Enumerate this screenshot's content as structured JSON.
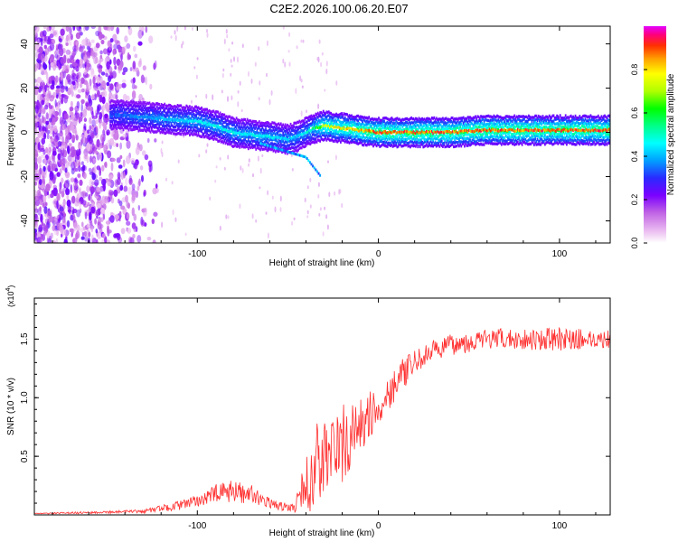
{
  "title": "C2E2.2026.100.06.20.E07",
  "chart_data": [
    {
      "type": "heatmap",
      "title": "C2E2.2026.100.06.20.E07",
      "xlabel": "Height of straight line (km)",
      "ylabel": "Frequency (Hz)",
      "xlim": [
        -190,
        128
      ],
      "ylim": [
        -50,
        48
      ],
      "xticks": [
        -100,
        0,
        100
      ],
      "yticks": [
        -40,
        -20,
        0,
        20,
        40
      ],
      "grid": false,
      "colorbar": {
        "label": "Normalized spectral amplitude",
        "range": [
          0,
          1
        ],
        "ticks": [
          "0.0",
          "0.2",
          "0.4",
          "0.6",
          "0.8"
        ],
        "colors": [
          "#ffffff",
          "#e9b8f0",
          "#c063e4",
          "#7a00ff",
          "#2a2aff",
          "#00a0ff",
          "#00ffff",
          "#00ff88",
          "#00ff00",
          "#b0ff00",
          "#ffff00",
          "#ffa000",
          "#ff3000",
          "#ff007a",
          "#e400ff"
        ]
      },
      "ridge": {
        "description_points_x": [
          -145,
          -130,
          -115,
          -100,
          -90,
          -80,
          -70,
          -60,
          -50,
          -45,
          -40,
          -35,
          -30,
          -20,
          -10,
          0,
          20,
          40,
          60,
          80,
          100,
          128
        ],
        "description_points_y": [
          8,
          7,
          6,
          5,
          3,
          0,
          -1,
          -2,
          -3,
          -2,
          0,
          2,
          3,
          2,
          1,
          0,
          0,
          0,
          1,
          1,
          1,
          1
        ],
        "amplitude": [
          0.35,
          0.4,
          0.45,
          0.5,
          0.5,
          0.5,
          0.5,
          0.5,
          0.45,
          0.45,
          0.5,
          0.6,
          0.8,
          0.85,
          0.9,
          0.95,
          0.95,
          0.95,
          0.95,
          0.95,
          0.95,
          0.95
        ]
      }
    },
    {
      "type": "line",
      "xlabel": "Height of straight line (km)",
      "ylabel": "SNR (10 * v/v)",
      "multiplier_label": "(x10",
      "multiplier_exp": "4",
      "multiplier_close": ")",
      "xlim": [
        -190,
        128
      ],
      "ylim": [
        0,
        1.85
      ],
      "xticks": [
        -100,
        0,
        100
      ],
      "yticks": [
        0.5,
        1.0,
        1.5
      ],
      "ytick_labels": [
        "0.5",
        "1.0",
        "1.5"
      ],
      "color": "#ff3030",
      "series": [
        {
          "name": "SNR",
          "envelope_x": [
            -190,
            -160,
            -130,
            -110,
            -100,
            -90,
            -80,
            -70,
            -60,
            -50,
            -45,
            -40,
            -35,
            -30,
            -25,
            -20,
            -15,
            -10,
            -5,
            0,
            10,
            20,
            30,
            40,
            60,
            80,
            100,
            120,
            128
          ],
          "envelope_mean": [
            0.01,
            0.02,
            0.03,
            0.08,
            0.12,
            0.18,
            0.2,
            0.18,
            0.1,
            0.06,
            0.1,
            0.25,
            0.4,
            0.5,
            0.55,
            0.6,
            0.65,
            0.75,
            0.85,
            0.9,
            1.15,
            1.3,
            1.4,
            1.45,
            1.5,
            1.5,
            1.5,
            1.5,
            1.5
          ],
          "envelope_noise": [
            0.005,
            0.01,
            0.015,
            0.04,
            0.05,
            0.08,
            0.1,
            0.08,
            0.04,
            0.04,
            0.08,
            0.25,
            0.4,
            0.35,
            0.35,
            0.35,
            0.3,
            0.25,
            0.2,
            0.18,
            0.15,
            0.1,
            0.09,
            0.09,
            0.09,
            0.09,
            0.1,
            0.08,
            0.08
          ]
        }
      ]
    }
  ]
}
